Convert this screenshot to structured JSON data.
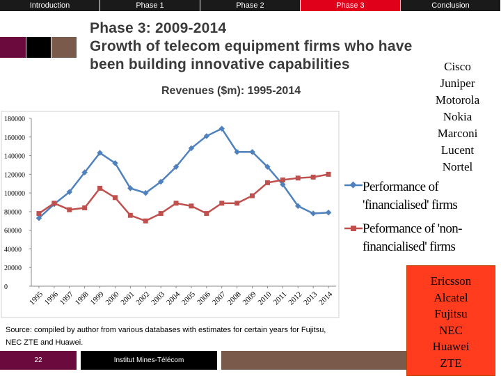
{
  "nav": {
    "tabs": [
      {
        "label": "Introduction",
        "active": false
      },
      {
        "label": "Phase 1",
        "active": false
      },
      {
        "label": "Phase 2",
        "active": false
      },
      {
        "label": "Phase 3",
        "active": true
      },
      {
        "label": "Conclusion",
        "active": false
      }
    ]
  },
  "slide": {
    "title_line1": "Phase 3: 2009-2014",
    "title_line2": "Growth of telecom equipment firms who have",
    "title_line3": "been building innovative capabilities",
    "chart_title": "Revenues ($m): 1995-2014",
    "top_firms": [
      "Cisco",
      "Juniper",
      "Motorola",
      "Nokia",
      "Marconi",
      "Lucent",
      "Nortel"
    ],
    "bottom_firms": [
      "Ericsson",
      "Alcatel",
      "Fujitsu",
      "NEC",
      "Huawei",
      "ZTE"
    ],
    "legend": {
      "series1_line1": "Performance of",
      "series1_line2": "'financialised' firms",
      "series2_line1": "Peformance of 'non-",
      "series2_line2": "financialised' firms"
    },
    "source": "Source: compiled by author from various databases with estimates for certain years for Fujitsu, NEC ZTE and Huawei."
  },
  "footer": {
    "page_number": "22",
    "institution": "Institut Mines-Télécom"
  },
  "colors": {
    "accent_red": "#e0001a",
    "maroon": "#6b0a3c",
    "brown": "#7a5a4a",
    "series1": "#4f81bd",
    "series2": "#c0504d"
  },
  "chart_data": {
    "type": "line",
    "x": [
      "1995",
      "1996",
      "1997",
      "1998",
      "1999",
      "2000",
      "2001",
      "2002",
      "2003",
      "2004",
      "2005",
      "2006",
      "2007",
      "2008",
      "2009",
      "2010",
      "2011",
      "2012",
      "2013",
      "2014"
    ],
    "ylim": [
      0,
      180000
    ],
    "yticks": [
      0,
      20000,
      40000,
      60000,
      80000,
      100000,
      120000,
      140000,
      160000,
      180000
    ],
    "series": [
      {
        "name": "Performance of 'financialised' firms",
        "color": "#4f81bd",
        "marker": "diamond",
        "values": [
          73000,
          88000,
          101000,
          122000,
          143000,
          132000,
          105000,
          100000,
          112000,
          128000,
          148000,
          161000,
          169000,
          144000,
          144000,
          128000,
          109000,
          86000,
          78000,
          79000
        ]
      },
      {
        "name": "Peformance of 'non-financialised' firms",
        "color": "#c0504d",
        "marker": "square",
        "values": [
          78000,
          89000,
          82000,
          84000,
          105000,
          95000,
          76000,
          70000,
          78000,
          89000,
          86000,
          78000,
          89000,
          89000,
          97000,
          111000,
          114000,
          116000,
          117000,
          120000
        ]
      }
    ]
  }
}
